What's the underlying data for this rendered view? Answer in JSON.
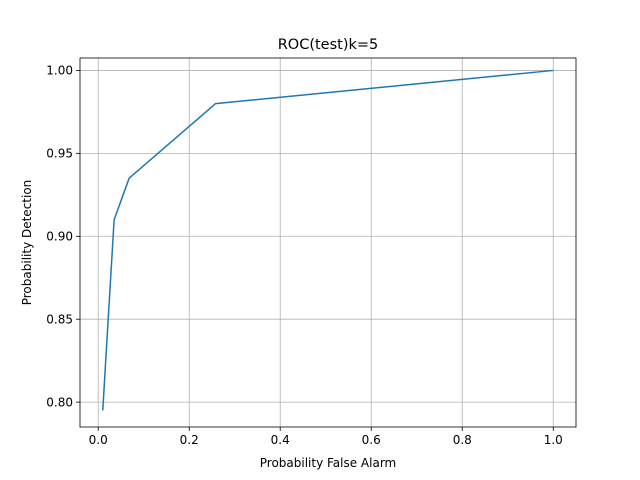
{
  "chart_data": {
    "type": "line",
    "title": "ROC(test)k=5",
    "xlabel": "Probability False Alarm",
    "ylabel": "Probability Detection",
    "xlim": [
      -0.04,
      1.05
    ],
    "ylim": [
      0.785,
      1.0075
    ],
    "xticks": [
      0.0,
      0.2,
      0.4,
      0.6,
      0.8,
      1.0
    ],
    "xtick_labels": [
      "0.0",
      "0.2",
      "0.4",
      "0.6",
      "0.8",
      "1.0"
    ],
    "yticks": [
      0.8,
      0.85,
      0.9,
      0.95,
      1.0
    ],
    "ytick_labels": [
      "0.80",
      "0.85",
      "0.90",
      "0.95",
      "1.00"
    ],
    "grid": true,
    "series": [
      {
        "color": "#1f77b4",
        "x": [
          0.01,
          0.035,
          0.068,
          0.258,
          1.0
        ],
        "y": [
          0.795,
          0.91,
          0.935,
          0.98,
          1.0
        ]
      }
    ]
  }
}
